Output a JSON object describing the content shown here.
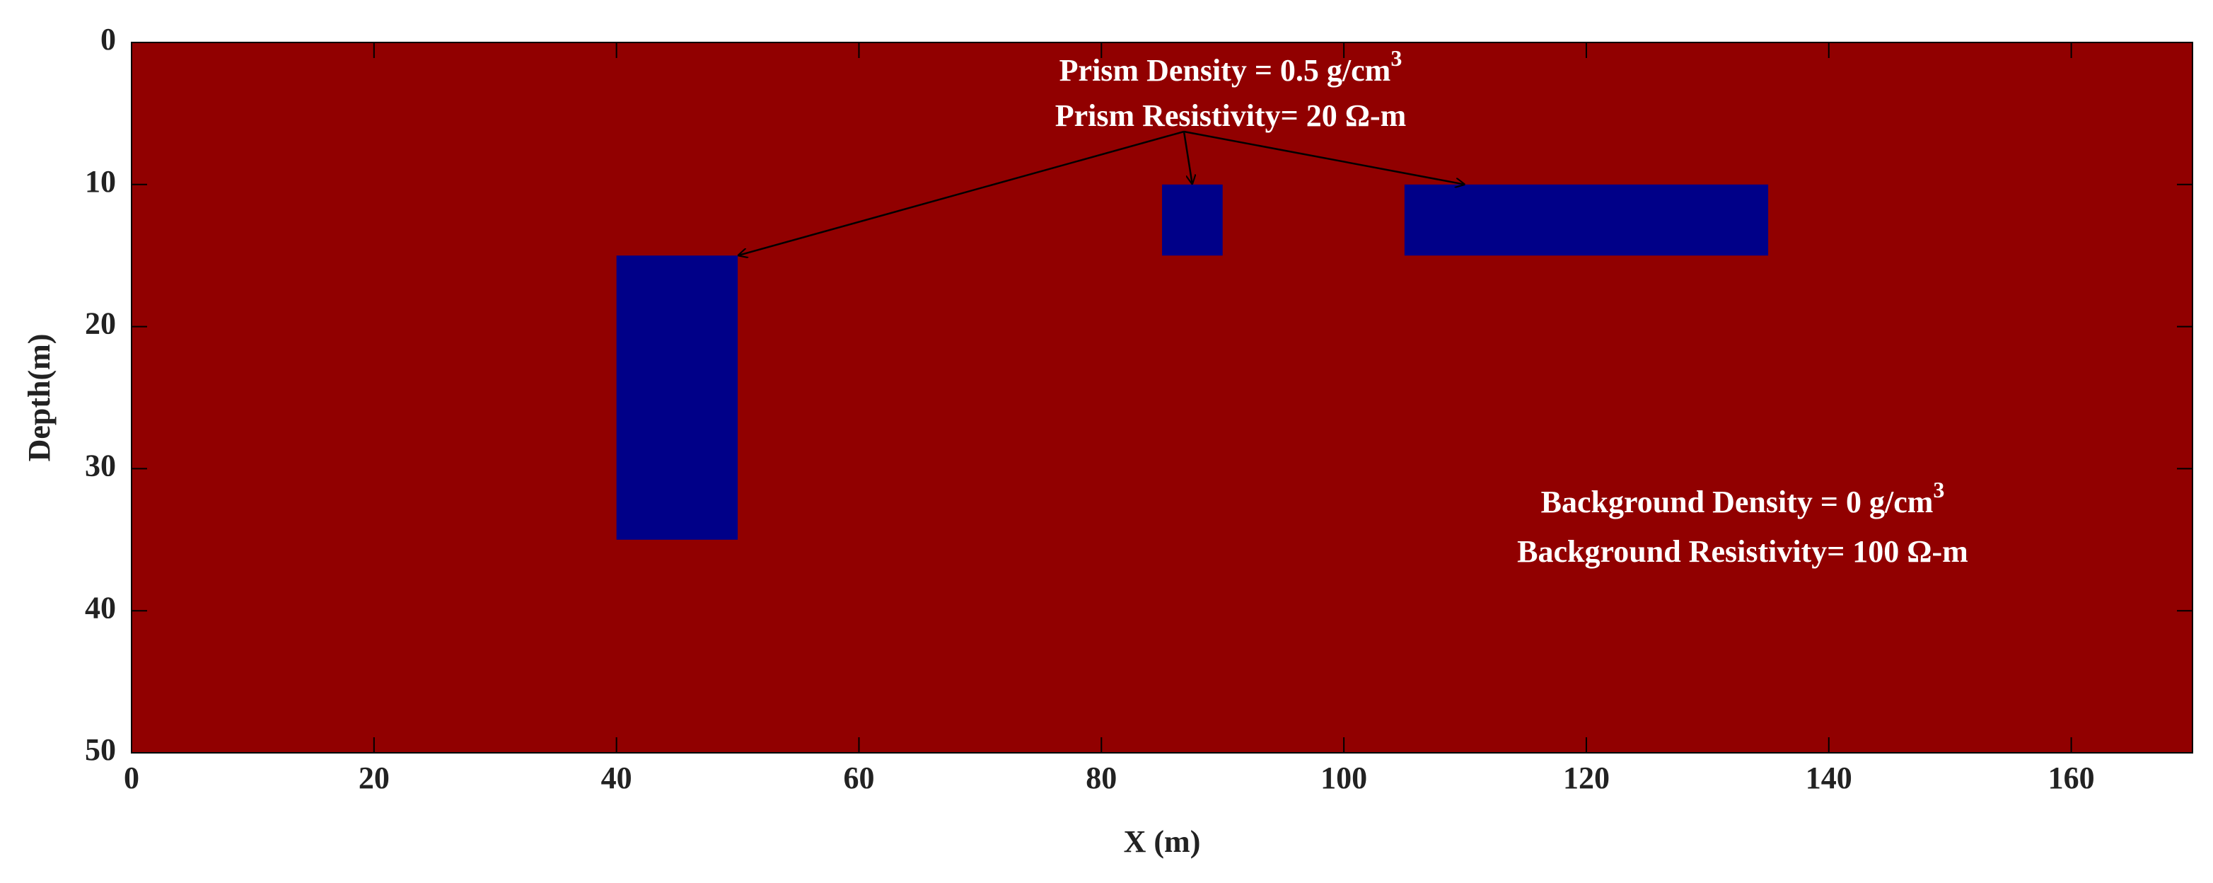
{
  "chart_data": {
    "type": "model",
    "xlabel": "X (m)",
    "ylabel": "Depth(m)",
    "xlim": [
      0,
      170
    ],
    "xticks": [
      0,
      20,
      40,
      60,
      80,
      100,
      120,
      140,
      160
    ],
    "ylim": [
      0,
      50
    ],
    "yticks": [
      0,
      10,
      20,
      30,
      40,
      50
    ],
    "y_reversed": true,
    "background_color": "#910000",
    "prism_color": "#000088",
    "prisms": [
      {
        "x": [
          40,
          50
        ],
        "depth": [
          15,
          35
        ]
      },
      {
        "x": [
          85,
          90
        ],
        "depth": [
          10,
          15
        ]
      },
      {
        "x": [
          105,
          135
        ],
        "depth": [
          10,
          15
        ]
      }
    ],
    "annotations": {
      "prism": [
        {
          "text": "Prism Density = 0.5 g/cm",
          "sup": "3"
        },
        {
          "text": "Prism Resistivity= 20 Ω-m"
        }
      ],
      "background": [
        {
          "text": "Background Density = 0 g/cm",
          "sup": "3"
        },
        {
          "text": "Background Resistivity= 100 Ω-m"
        }
      ]
    }
  }
}
